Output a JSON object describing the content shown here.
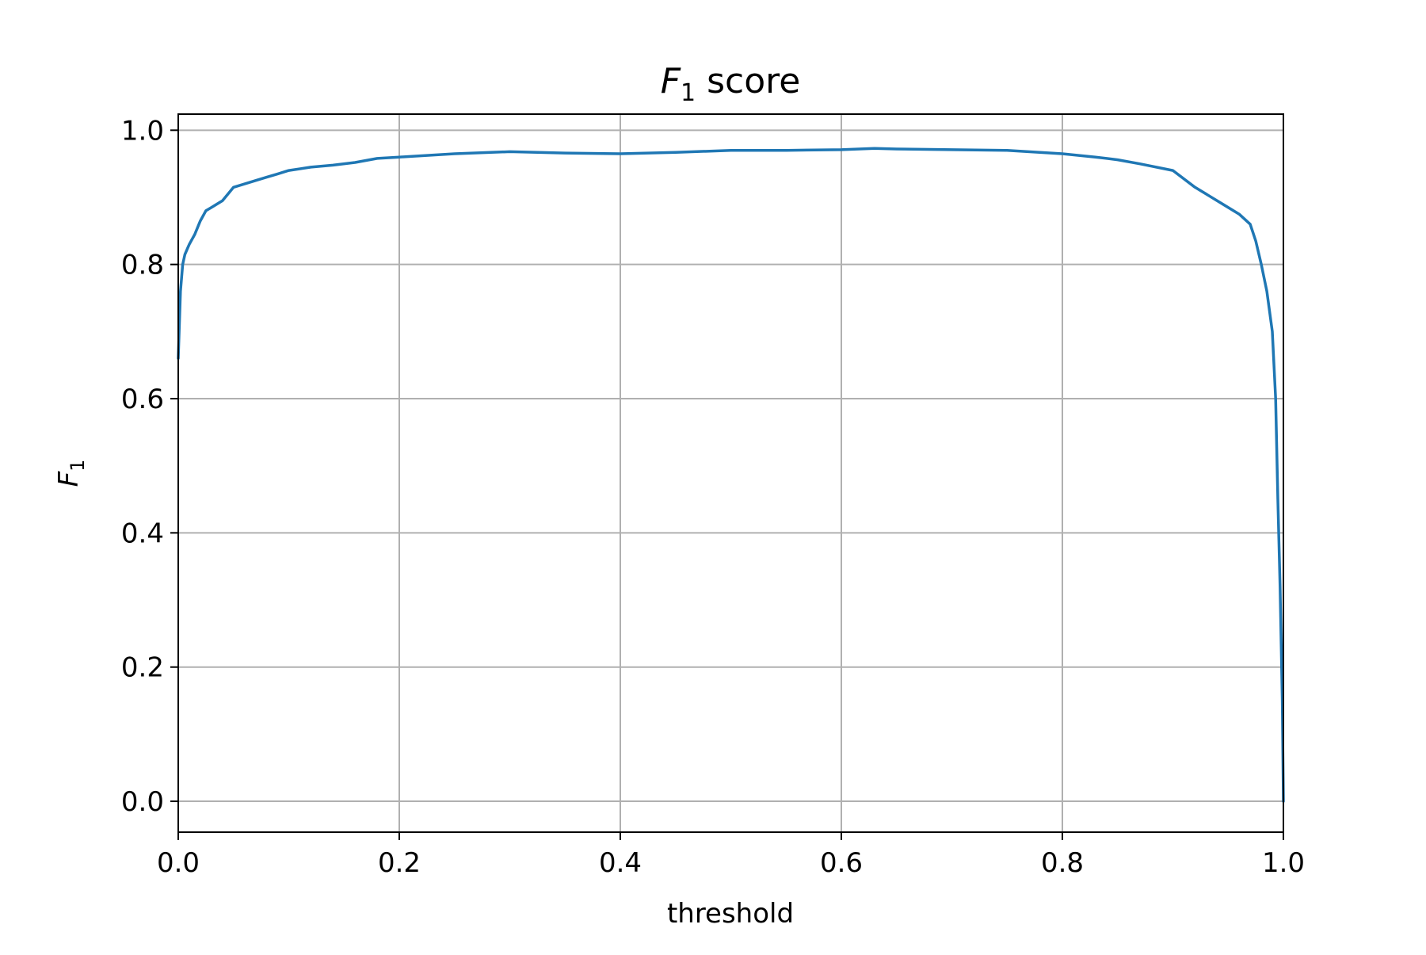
{
  "chart_data": {
    "type": "line",
    "title_main": "F",
    "title_sub": "1",
    "title_rest": " score",
    "xlabel": "threshold",
    "ylabel_main": "F",
    "ylabel_sub": "1",
    "xlim": [
      0.0,
      1.0
    ],
    "ylim": [
      -0.046,
      1.024
    ],
    "xticks": [
      0.0,
      0.2,
      0.4,
      0.6,
      0.8,
      1.0
    ],
    "xtick_labels": [
      "0.0",
      "0.2",
      "0.4",
      "0.6",
      "0.8",
      "1.0"
    ],
    "yticks": [
      0.0,
      0.2,
      0.4,
      0.6,
      0.8,
      1.0
    ],
    "ytick_labels": [
      "0.0",
      "0.2",
      "0.4",
      "0.6",
      "0.8",
      "1.0"
    ],
    "grid": true,
    "line_color": "#1f77b4",
    "series": [
      {
        "x": [
          0.0,
          0.002,
          0.004,
          0.006,
          0.01,
          0.015,
          0.02,
          0.025,
          0.03,
          0.04,
          0.05,
          0.06,
          0.07,
          0.08,
          0.09,
          0.1,
          0.12,
          0.14,
          0.16,
          0.18,
          0.2,
          0.25,
          0.3,
          0.35,
          0.4,
          0.45,
          0.5,
          0.55,
          0.6,
          0.63,
          0.65,
          0.7,
          0.75,
          0.8,
          0.83,
          0.85,
          0.87,
          0.9,
          0.92,
          0.94,
          0.96,
          0.97,
          0.975,
          0.98,
          0.985,
          0.99,
          0.993,
          0.995,
          0.997,
          0.999,
          1.0
        ],
        "y": [
          0.66,
          0.76,
          0.8,
          0.815,
          0.83,
          0.845,
          0.865,
          0.88,
          0.885,
          0.895,
          0.915,
          0.92,
          0.925,
          0.93,
          0.935,
          0.94,
          0.945,
          0.948,
          0.952,
          0.958,
          0.96,
          0.965,
          0.968,
          0.966,
          0.965,
          0.967,
          0.97,
          0.97,
          0.971,
          0.973,
          0.972,
          0.971,
          0.97,
          0.965,
          0.96,
          0.956,
          0.95,
          0.94,
          0.915,
          0.895,
          0.875,
          0.86,
          0.835,
          0.8,
          0.76,
          0.7,
          0.6,
          0.45,
          0.32,
          0.15,
          0.0
        ]
      }
    ]
  }
}
